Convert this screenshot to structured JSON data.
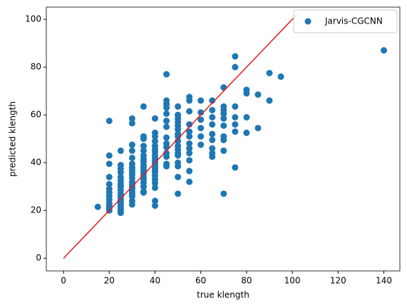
{
  "chart_data": {
    "type": "scatter",
    "xlabel": "true klength",
    "ylabel": "predicted klength",
    "xlim": [
      -7.5,
      147
    ],
    "ylim": [
      -5.3,
      105.1
    ],
    "xticks": [
      0,
      20,
      40,
      60,
      80,
      100,
      120,
      140
    ],
    "yticks": [
      0,
      20,
      40,
      60,
      80,
      100
    ],
    "legend": "upper right",
    "series": [
      {
        "name": "Jarvis-CGCNN",
        "color": "#1f77b4",
        "x": [
          15,
          20,
          20,
          20,
          20,
          20,
          20,
          20,
          20,
          20,
          20,
          20,
          20,
          20,
          25,
          25,
          25,
          25,
          25,
          25,
          25,
          25,
          25,
          25,
          25,
          25,
          25,
          25,
          25,
          25,
          25,
          25,
          30,
          30,
          30,
          30,
          30,
          30,
          30,
          30,
          30,
          30,
          30,
          30,
          30,
          30,
          30,
          30,
          30,
          30,
          30,
          30,
          35,
          35,
          35,
          35,
          35,
          35,
          35,
          35,
          35,
          35,
          35,
          35,
          35,
          35,
          35,
          35,
          35,
          35,
          35,
          40,
          40,
          40,
          40,
          40,
          40,
          40,
          40,
          40,
          40,
          40,
          40,
          40,
          40,
          40,
          40,
          40,
          40,
          40,
          40,
          40,
          45,
          45,
          45,
          45,
          45,
          45,
          45,
          45,
          45,
          45,
          45,
          45,
          45,
          45,
          50,
          50,
          50,
          50,
          50,
          50,
          50,
          50,
          50,
          50,
          50,
          50,
          50,
          50,
          50,
          50,
          50,
          55,
          55,
          55,
          55,
          55,
          55,
          55,
          55,
          55,
          55,
          55,
          55,
          60,
          60,
          60,
          60,
          60,
          60,
          65,
          65,
          65,
          65,
          65,
          65,
          65,
          65,
          65,
          70,
          70,
          70,
          70,
          70,
          70,
          70,
          70,
          70,
          70,
          75,
          75,
          75,
          75,
          75,
          75,
          75,
          80,
          80,
          80,
          80,
          85,
          85,
          90,
          90,
          95,
          140
        ],
        "values": [
          21.5,
          57.5,
          43,
          39.5,
          34,
          31,
          29,
          27.5,
          26,
          24.5,
          23,
          22,
          21,
          20,
          45,
          39,
          37.5,
          36,
          34,
          32.5,
          31,
          30,
          28.5,
          27,
          26,
          25,
          24,
          23,
          22,
          21,
          20,
          19,
          58.5,
          56.5,
          47.5,
          45,
          42,
          39.5,
          38,
          37,
          36,
          35,
          33.5,
          32,
          31,
          30,
          29,
          28,
          27,
          26,
          24,
          22.5,
          63.5,
          51,
          50,
          47,
          45,
          43,
          41.5,
          40.5,
          39,
          38,
          37,
          36,
          35,
          34,
          33,
          31.5,
          30,
          28,
          27.5,
          58.5,
          52.5,
          51,
          49,
          47,
          45.5,
          44.5,
          43,
          42,
          41,
          40,
          39,
          38,
          37,
          36,
          34.5,
          33,
          31.5,
          29.5,
          24,
          22,
          77,
          66,
          64.5,
          63,
          60.5,
          57.5,
          55,
          50.5,
          48,
          46.5,
          44,
          42.5,
          39.5,
          38.5,
          63.5,
          60,
          58.5,
          57,
          55.5,
          54,
          52,
          51,
          49,
          47,
          45.5,
          44,
          43,
          40,
          38.5,
          34,
          27,
          67.5,
          66,
          61.5,
          56,
          53,
          51,
          48,
          46,
          44,
          41,
          36.5,
          32,
          66,
          61,
          58,
          54.5,
          51,
          47.5,
          66,
          62,
          59,
          56,
          52,
          49.5,
          46,
          44,
          42.5,
          71.5,
          63.5,
          62,
          60.5,
          58.5,
          55.5,
          51,
          49.5,
          45,
          27,
          84.5,
          80,
          63.5,
          59,
          56,
          53,
          38,
          70.5,
          69,
          59,
          52.5,
          68.5,
          54.5,
          77.5,
          66,
          76,
          87
        ]
      }
    ],
    "lines": [
      {
        "color": "#e41a1c",
        "x": [
          0,
          102
        ],
        "values": [
          0,
          102
        ]
      }
    ]
  }
}
